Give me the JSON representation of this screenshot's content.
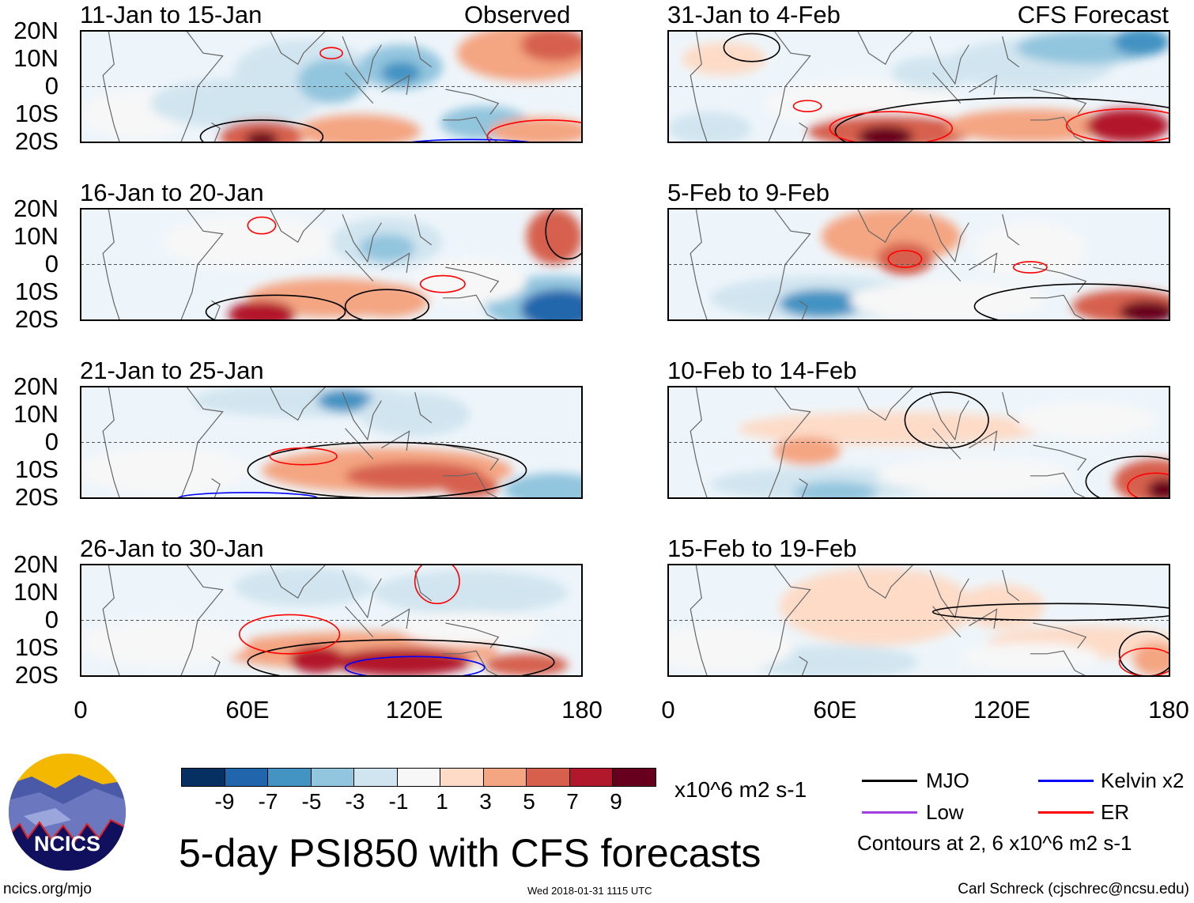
{
  "title": "5-day PSI850 with CFS forecasts",
  "url": "ncics.org/mjo",
  "timestamp": "Wed 2018-01-31 1115 UTC",
  "author": "Carl Schreck (cjschrec@ncsu.edu)",
  "logo_text": "NCICS",
  "labels": {
    "observed": "Observed",
    "forecast": "CFS Forecast"
  },
  "y_ticks": [
    "20N",
    "10N",
    "0",
    "10S",
    "20S"
  ],
  "x_ticks": [
    "0",
    "60E",
    "120E",
    "180"
  ],
  "colorbar": {
    "colors": [
      "#053061",
      "#2166ac",
      "#4393c3",
      "#92c5de",
      "#d1e5f0",
      "#f7f7f7",
      "#fddbc7",
      "#f4a582",
      "#d6604d",
      "#b2182b",
      "#67001f"
    ],
    "labels": [
      "-9",
      "-7",
      "-5",
      "-3",
      "-1",
      "1",
      "3",
      "5",
      "7",
      "9"
    ],
    "units": "x10^6 m2 s-1"
  },
  "legend": {
    "items": [
      {
        "label": "MJO",
        "color": "#000000"
      },
      {
        "label": "Kelvin x2",
        "color": "#0000ff"
      },
      {
        "label": "Low",
        "color": "#a040e0"
      },
      {
        "label": "ER",
        "color": "#ff0000"
      }
    ],
    "note": "Contours at 2, 6 x10^6 m2 s-1"
  },
  "chart_data": {
    "type": "heatmap",
    "lon_range": [
      0,
      180
    ],
    "lat_range": [
      -20,
      20
    ],
    "panels": [
      {
        "title": "11-Jan to 15-Jan",
        "fills": [
          [
            20,
            -10,
            20,
            8,
            -1
          ],
          [
            55,
            -6,
            30,
            9,
            -3
          ],
          [
            80,
            5,
            25,
            12,
            -3
          ],
          [
            90,
            2,
            12,
            8,
            -5
          ],
          [
            115,
            7,
            15,
            8,
            -5
          ],
          [
            115,
            5,
            7,
            4,
            -7
          ],
          [
            160,
            12,
            25,
            10,
            3
          ],
          [
            170,
            15,
            12,
            6,
            5
          ],
          [
            65,
            -18,
            15,
            6,
            5
          ],
          [
            65,
            -19,
            6,
            3,
            9
          ],
          [
            100,
            -16,
            22,
            6,
            3
          ],
          [
            145,
            -13,
            16,
            6,
            -5
          ],
          [
            165,
            -16,
            18,
            5,
            3
          ]
        ],
        "contours": [
          [
            "MJO",
            65,
            -18,
            22,
            6
          ],
          [
            "ER",
            168,
            -18,
            22,
            6
          ],
          [
            "Kelvin",
            140,
            -21,
            25,
            2
          ],
          [
            "ER",
            90,
            12,
            4,
            2
          ]
        ]
      },
      {
        "title": "16-Jan to 20-Jan",
        "fills": [
          [
            60,
            8,
            30,
            9,
            -1
          ],
          [
            110,
            8,
            20,
            9,
            -3
          ],
          [
            110,
            6,
            10,
            5,
            -5
          ],
          [
            90,
            -12,
            30,
            7,
            3
          ],
          [
            65,
            -18,
            12,
            5,
            7
          ],
          [
            110,
            -13,
            15,
            6,
            3
          ],
          [
            170,
            -14,
            25,
            10,
            -5
          ],
          [
            172,
            -16,
            14,
            7,
            -9
          ],
          [
            170,
            10,
            10,
            10,
            5
          ],
          [
            140,
            -6,
            20,
            8,
            -1
          ]
        ],
        "contours": [
          [
            "MJO",
            70,
            -17,
            25,
            6
          ],
          [
            "MJO",
            110,
            -15,
            15,
            6
          ],
          [
            "ER",
            65,
            14,
            5,
            3
          ],
          [
            "ER",
            130,
            -7,
            8,
            3
          ],
          [
            "MJO",
            175,
            12,
            8,
            10
          ]
        ]
      },
      {
        "title": "21-Jan to 25-Jan",
        "fills": [
          [
            80,
            15,
            40,
            6,
            -3
          ],
          [
            95,
            15,
            10,
            4,
            -7
          ],
          [
            120,
            10,
            20,
            8,
            -3
          ],
          [
            110,
            -10,
            45,
            8,
            3
          ],
          [
            120,
            -12,
            25,
            5,
            5
          ],
          [
            140,
            -16,
            10,
            4,
            5
          ],
          [
            170,
            -17,
            18,
            6,
            -5
          ],
          [
            30,
            -10,
            30,
            8,
            -1
          ]
        ],
        "contours": [
          [
            "MJO",
            110,
            -10,
            50,
            10
          ],
          [
            "ER",
            80,
            -5,
            12,
            3
          ],
          [
            "Kelvin",
            60,
            -20,
            25,
            2
          ]
        ]
      },
      {
        "title": "26-Jan to 30-Jan",
        "fills": [
          [
            80,
            12,
            25,
            7,
            -3
          ],
          [
            140,
            10,
            35,
            8,
            -3
          ],
          [
            100,
            -11,
            50,
            7,
            3
          ],
          [
            85,
            -14,
            10,
            5,
            7
          ],
          [
            115,
            -15,
            25,
            5,
            7
          ],
          [
            160,
            -16,
            15,
            4,
            5
          ],
          [
            30,
            -8,
            30,
            8,
            -1
          ],
          [
            140,
            -3,
            25,
            6,
            -1
          ]
        ],
        "contours": [
          [
            "MJO",
            115,
            -15,
            55,
            8
          ],
          [
            "ER",
            75,
            -5,
            18,
            7
          ],
          [
            "Kelvin",
            120,
            -17,
            25,
            4
          ],
          [
            "ER",
            128,
            14,
            8,
            8
          ]
        ]
      },
      {
        "title": "31-Jan to 4-Feb",
        "fills": [
          [
            20,
            10,
            15,
            6,
            1
          ],
          [
            70,
            -6,
            35,
            8,
            -1
          ],
          [
            95,
            5,
            15,
            6,
            -3
          ],
          [
            130,
            8,
            30,
            9,
            -3
          ],
          [
            150,
            14,
            25,
            6,
            -5
          ],
          [
            170,
            16,
            10,
            5,
            -7
          ],
          [
            80,
            -16,
            30,
            6,
            5
          ],
          [
            78,
            -18,
            10,
            4,
            9
          ],
          [
            130,
            -14,
            30,
            6,
            3
          ],
          [
            165,
            -14,
            15,
            6,
            7
          ],
          [
            15,
            -15,
            15,
            6,
            -3
          ]
        ],
        "contours": [
          [
            "MJO",
            130,
            -16,
            70,
            12
          ],
          [
            "ER",
            80,
            -15,
            22,
            6
          ],
          [
            "ER",
            165,
            -14,
            22,
            6
          ],
          [
            "ER",
            50,
            -7,
            5,
            2
          ],
          [
            "MJO",
            30,
            14,
            10,
            5
          ]
        ]
      },
      {
        "title": "5-Feb to 9-Feb",
        "fills": [
          [
            80,
            10,
            25,
            10,
            3
          ],
          [
            85,
            2,
            10,
            6,
            5
          ],
          [
            55,
            -12,
            40,
            8,
            -3
          ],
          [
            55,
            -14,
            15,
            5,
            -7
          ],
          [
            100,
            -13,
            35,
            7,
            -1
          ],
          [
            130,
            5,
            20,
            10,
            -1
          ],
          [
            165,
            -15,
            20,
            6,
            5
          ],
          [
            172,
            -17,
            10,
            4,
            9
          ]
        ],
        "contours": [
          [
            "MJO",
            150,
            -15,
            40,
            8
          ],
          [
            "ER",
            85,
            2,
            6,
            3
          ],
          [
            "ER",
            130,
            -1,
            6,
            2
          ]
        ]
      },
      {
        "title": "10-Feb to 14-Feb",
        "fills": [
          [
            80,
            5,
            55,
            6,
            1
          ],
          [
            50,
            -3,
            12,
            5,
            3
          ],
          [
            55,
            -15,
            40,
            6,
            -3
          ],
          [
            60,
            -18,
            15,
            4,
            -5
          ],
          [
            110,
            -12,
            35,
            6,
            -1
          ],
          [
            175,
            -14,
            15,
            8,
            5
          ],
          [
            178,
            -17,
            6,
            4,
            9
          ],
          [
            150,
            8,
            25,
            6,
            -1
          ]
        ],
        "contours": [
          [
            "MJO",
            100,
            8,
            15,
            10
          ],
          [
            "MJO",
            170,
            -14,
            20,
            9
          ],
          [
            "ER",
            175,
            -16,
            10,
            5
          ]
        ]
      },
      {
        "title": "15-Feb to 19-Feb",
        "fills": [
          [
            75,
            5,
            35,
            14,
            1
          ],
          [
            120,
            5,
            15,
            8,
            1
          ],
          [
            150,
            -8,
            35,
            6,
            1
          ],
          [
            60,
            -15,
            30,
            6,
            -3
          ],
          [
            20,
            -10,
            25,
            8,
            -1
          ],
          [
            130,
            -13,
            25,
            5,
            -1
          ],
          [
            175,
            -14,
            8,
            6,
            3
          ]
        ],
        "contours": [
          [
            "MJO",
            140,
            3,
            45,
            3
          ],
          [
            "MJO",
            172,
            -12,
            10,
            8
          ],
          [
            "ER",
            172,
            -15,
            10,
            5
          ]
        ]
      }
    ]
  }
}
